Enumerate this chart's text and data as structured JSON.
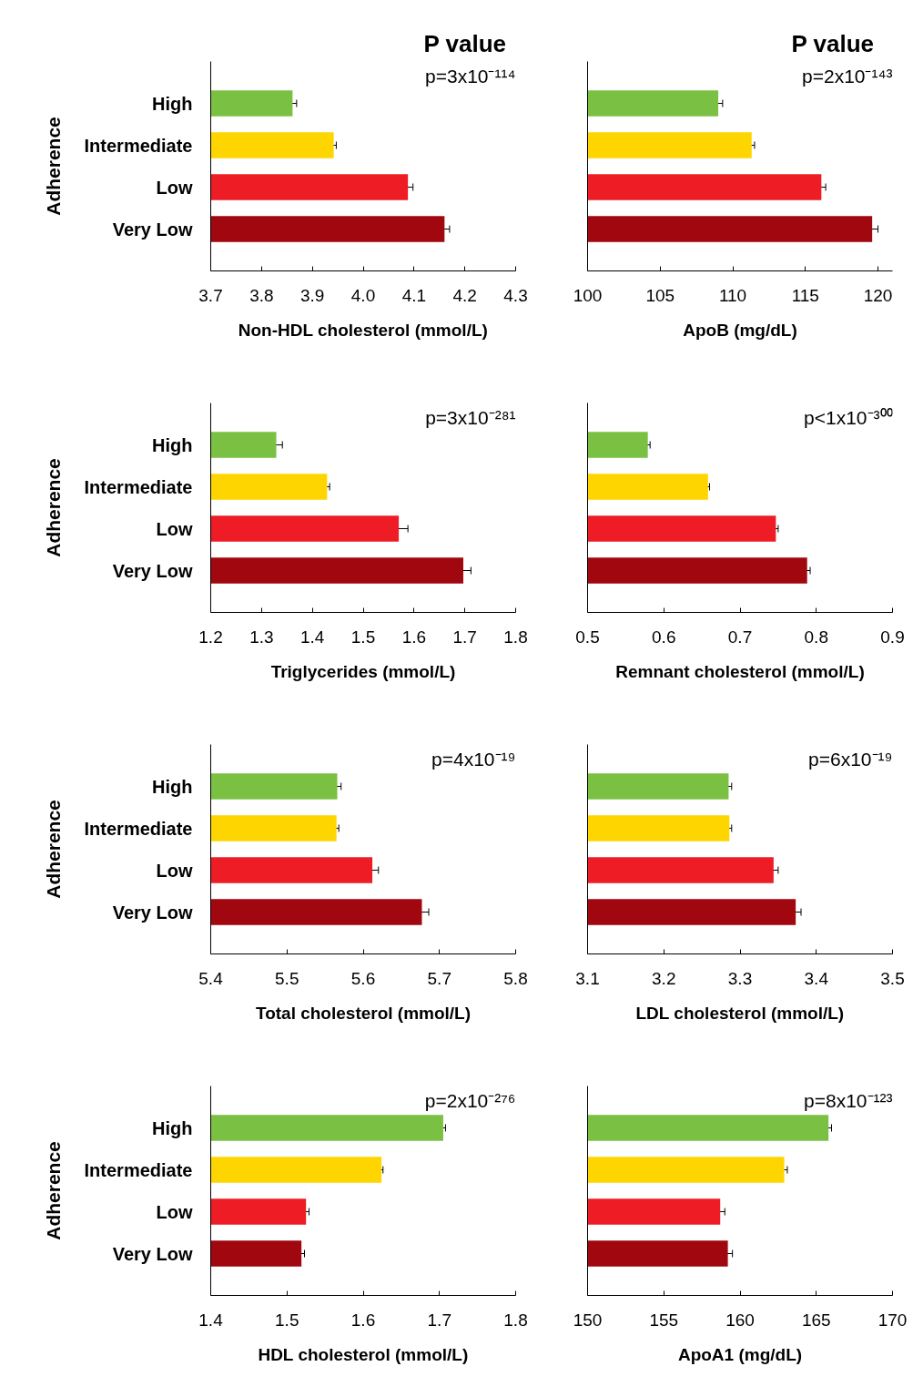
{
  "chart_data": [
    {
      "type": "bar",
      "orientation": "horizontal",
      "title": "P value",
      "ylabel": "Adherence",
      "xlabel": "Non-HDL cholesterol (mmol/L)",
      "annotations": [
        "p=3x10⁻¹¹⁴"
      ],
      "categories": [
        "High",
        "Intermediate",
        "Low",
        "Very Low"
      ],
      "values": [
        3.861,
        3.942,
        4.088,
        4.16
      ],
      "errors": [
        0.008,
        0.005,
        0.01,
        0.01
      ],
      "colors": [
        "#7ac143",
        "#ffd500",
        "#ee1c25",
        "#a0070f"
      ],
      "xlim": [
        3.7,
        4.3
      ],
      "xticks": [
        3.7,
        3.8,
        3.9,
        {
          "value": 4.0,
          "label": "4.0"
        },
        4.1,
        4.2,
        4.3
      ]
    },
    {
      "type": "bar",
      "orientation": "horizontal",
      "title": "P value",
      "xlabel": "ApoB (mg/dL)",
      "annotations": [
        "p=2x10⁻¹⁴³"
      ],
      "categories": [
        null,
        null,
        null,
        null
      ],
      "values": [
        109.0,
        111.3,
        116.1,
        119.6
      ],
      "errors": [
        0.3,
        0.2,
        0.3,
        0.4
      ],
      "colors": [
        "#7ac143",
        "#ffd500",
        "#ee1c25",
        "#a0070f"
      ],
      "xlim": [
        100,
        121
      ],
      "xticks": [
        100,
        105,
        110,
        115,
        120
      ]
    },
    {
      "type": "bar",
      "orientation": "horizontal",
      "ylabel": "Adherence",
      "xlabel": "Triglycerides (mmol/L)",
      "annotations": [
        "p=3x10⁻²⁸¹"
      ],
      "categories": [
        "High",
        "Intermediate",
        "Low",
        "Very Low"
      ],
      "values": [
        1.329,
        1.429,
        1.57,
        1.697
      ],
      "errors": [
        0.012,
        0.005,
        0.018,
        0.015
      ],
      "colors": [
        "#7ac143",
        "#ffd500",
        "#ee1c25",
        "#a0070f"
      ],
      "xlim": [
        1.2,
        1.8
      ],
      "xticks": [
        1.2,
        1.3,
        1.4,
        1.5,
        1.6,
        1.7,
        1.8
      ]
    },
    {
      "type": "bar",
      "orientation": "horizontal",
      "xlabel": "Remnant cholesterol (mmol/L)",
      "annotations": [
        "p<1x10⁻³⁰⁰"
      ],
      "categories": [
        null,
        null,
        null,
        null
      ],
      "values": [
        0.579,
        0.658,
        0.747,
        0.788
      ],
      "errors": [
        0.003,
        0.002,
        0.003,
        0.004
      ],
      "colors": [
        "#7ac143",
        "#ffd500",
        "#ee1c25",
        "#a0070f"
      ],
      "xlim": [
        0.5,
        0.9
      ],
      "xticks": [
        0.5,
        0.6,
        0.7,
        0.8,
        0.9
      ]
    },
    {
      "type": "bar",
      "orientation": "horizontal",
      "ylabel": "Adherence",
      "xlabel": "Total cholesterol (mmol/L)",
      "annotations": [
        "p=4x10⁻¹⁹"
      ],
      "categories": [
        "High",
        "Intermediate",
        "Low",
        "Very Low"
      ],
      "values": [
        5.566,
        5.565,
        5.612,
        5.677
      ],
      "errors": [
        0.005,
        0.003,
        0.008,
        0.009
      ],
      "colors": [
        "#7ac143",
        "#ffd500",
        "#ee1c25",
        "#a0070f"
      ],
      "xlim": [
        5.4,
        5.8
      ],
      "xticks": [
        5.4,
        5.5,
        5.6,
        5.7,
        5.8
      ]
    },
    {
      "type": "bar",
      "orientation": "horizontal",
      "xlabel": "LDL cholesterol (mmol/L)",
      "annotations": [
        "p=6x10⁻¹⁹"
      ],
      "categories": [
        null,
        null,
        null,
        null
      ],
      "values": [
        3.285,
        3.286,
        3.344,
        3.373
      ],
      "errors": [
        0.004,
        0.003,
        0.006,
        0.007
      ],
      "colors": [
        "#7ac143",
        "#ffd500",
        "#ee1c25",
        "#a0070f"
      ],
      "xlim": [
        3.1,
        3.5
      ],
      "xticks": [
        3.1,
        3.2,
        3.3,
        3.4,
        3.5
      ]
    },
    {
      "type": "bar",
      "orientation": "horizontal",
      "ylabel": "Adherence",
      "xlabel": "HDL cholesterol (mmol/L)",
      "annotations": [
        "p=2x10⁻²⁷⁶"
      ],
      "categories": [
        "High",
        "Intermediate",
        "Low",
        "Very Low"
      ],
      "values": [
        1.705,
        1.624,
        1.525,
        1.519
      ],
      "errors": [
        0.003,
        0.002,
        0.004,
        0.004
      ],
      "colors": [
        "#7ac143",
        "#ffd500",
        "#ee1c25",
        "#a0070f"
      ],
      "xlim": [
        1.4,
        1.8
      ],
      "xticks": [
        1.4,
        1.5,
        1.6,
        1.7,
        1.8
      ]
    },
    {
      "type": "bar",
      "orientation": "horizontal",
      "xlabel": "ApoA1 (mg/dL)",
      "annotations": [
        "p=8x10⁻¹²³"
      ],
      "categories": [
        null,
        null,
        null,
        null
      ],
      "values": [
        165.8,
        162.9,
        158.7,
        159.2
      ],
      "errors": [
        0.2,
        0.2,
        0.3,
        0.3
      ],
      "colors": [
        "#7ac143",
        "#ffd500",
        "#ee1c25",
        "#a0070f"
      ],
      "xlim": [
        150,
        170
      ],
      "xticks": [
        150,
        155,
        160,
        165,
        170
      ]
    }
  ]
}
